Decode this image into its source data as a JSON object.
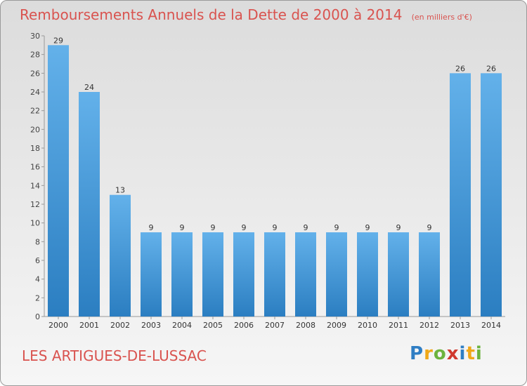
{
  "chart_data": {
    "type": "bar",
    "title": "Remboursements Annuels de la Dette de 2000 à 2014",
    "unit": "(en milliers d'€)",
    "categories": [
      "2000",
      "2001",
      "2002",
      "2003",
      "2004",
      "2005",
      "2006",
      "2007",
      "2008",
      "2009",
      "2010",
      "2011",
      "2012",
      "2013",
      "2014"
    ],
    "values": [
      29,
      24,
      13,
      9,
      9,
      9,
      9,
      9,
      9,
      9,
      9,
      9,
      9,
      26,
      26
    ],
    "ylim": [
      0,
      30
    ],
    "yticks": [
      0,
      2,
      4,
      6,
      8,
      10,
      12,
      14,
      16,
      18,
      20,
      22,
      24,
      26,
      28,
      30
    ],
    "grid": false,
    "colors": {
      "bar_light": "#63b1ea",
      "bar_dark": "#2b7ec1"
    }
  },
  "footer": {
    "commune": "LES ARTIGUES-DE-LUSSAC"
  },
  "brand": {
    "letters": [
      "P",
      "r",
      "o",
      "x",
      "i",
      "t",
      "i"
    ],
    "colors": [
      "#2f7ec4",
      "#f0a818",
      "#6cb33e",
      "#d0392e",
      "#2f7ec4",
      "#f0a818",
      "#6cb33e"
    ]
  }
}
